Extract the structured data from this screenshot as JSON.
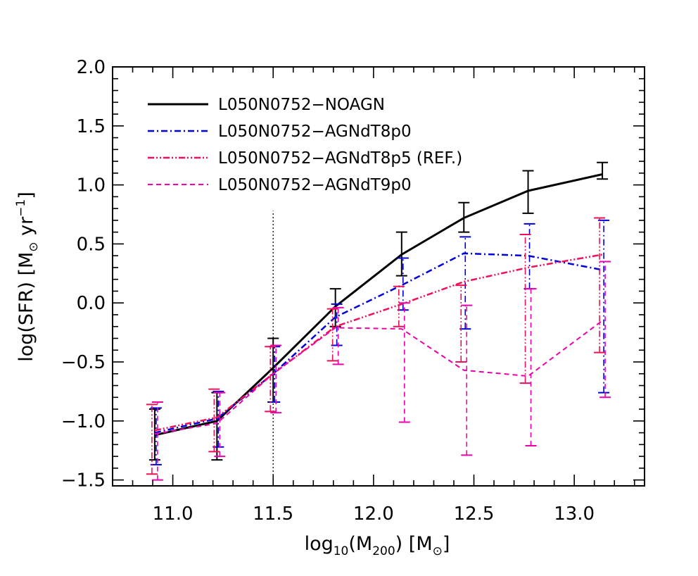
{
  "chart_data": {
    "type": "line",
    "title": "",
    "xlabel": {
      "pre": "log",
      "sub": "10",
      "mid": "(M",
      "sub2": "200",
      "post": ")  [M",
      "sym": "⊙",
      "end": "]"
    },
    "ylabel": {
      "pre": "log(SFR)  [M",
      "sym": "⊙",
      "mid": " yr",
      "sup": "−1",
      "end": "]"
    },
    "xlim": [
      10.7,
      13.35
    ],
    "ylim": [
      -1.55,
      2.0
    ],
    "xticks": [
      {
        "value": 11.0,
        "label": "11.0"
      },
      {
        "value": 11.5,
        "label": "11.5"
      },
      {
        "value": 12.0,
        "label": "12.0"
      },
      {
        "value": 12.5,
        "label": "12.5"
      },
      {
        "value": 13.0,
        "label": "13.0"
      }
    ],
    "yticks": [
      {
        "value": -1.5,
        "label": "−1.5"
      },
      {
        "value": -1.0,
        "label": "−1.0"
      },
      {
        "value": -0.5,
        "label": "−0.5"
      },
      {
        "value": 0.0,
        "label": "0.0"
      },
      {
        "value": 0.5,
        "label": "0.5"
      },
      {
        "value": 1.0,
        "label": "1.0"
      },
      {
        "value": 1.5,
        "label": "1.5"
      },
      {
        "value": 2.0,
        "label": "2.0"
      }
    ],
    "vline": {
      "x": 11.5,
      "y_top": 0.78
    },
    "legend_position": "top-left",
    "series": [
      {
        "name": "L050N0752−NOAGN",
        "color": "#000000",
        "style": "solid",
        "x": [
          10.91,
          11.22,
          11.5,
          11.81,
          12.14,
          12.45,
          12.77,
          13.14
        ],
        "y": [
          -1.12,
          -1.0,
          -0.55,
          -0.03,
          0.41,
          0.72,
          0.95,
          1.09
        ],
        "err_low": [
          -1.33,
          -1.33,
          -0.84,
          -0.2,
          0.23,
          0.6,
          0.76,
          1.05
        ],
        "err_high": [
          -0.9,
          -0.76,
          -0.3,
          0.12,
          0.6,
          0.85,
          1.12,
          1.19
        ]
      },
      {
        "name": "L050N0752−AGNdT8p0",
        "color": "#0000dd",
        "style": "dashdot",
        "x": [
          10.91,
          11.22,
          11.5,
          11.81,
          12.14,
          12.45,
          12.77,
          13.14
        ],
        "y": [
          -1.1,
          -0.98,
          -0.6,
          -0.12,
          0.15,
          0.42,
          0.4,
          0.28
        ],
        "err_low": [
          -1.37,
          -1.22,
          -0.84,
          -0.36,
          -0.06,
          -0.22,
          0.12,
          -0.76
        ],
        "err_high": [
          -0.89,
          -0.75,
          -0.37,
          -0.01,
          0.38,
          0.56,
          0.67,
          0.7
        ]
      },
      {
        "name": "L050N0752−AGNdT8p5 (REF.)",
        "color": "#ee1155",
        "style": "dashdotdot",
        "x": [
          10.91,
          11.22,
          11.5,
          11.81,
          12.14,
          12.45,
          12.77,
          13.14
        ],
        "y": [
          -1.08,
          -0.97,
          -0.6,
          -0.2,
          -0.01,
          0.18,
          0.3,
          0.41
        ],
        "err_low": [
          -1.45,
          -1.26,
          -0.92,
          -0.49,
          -0.2,
          -0.5,
          -0.68,
          -0.42
        ],
        "err_high": [
          -0.86,
          -0.73,
          -0.37,
          -0.05,
          0.14,
          0.15,
          0.58,
          0.72
        ]
      },
      {
        "name": "L050N0752−AGNdT9p0",
        "color": "#ee00aa",
        "style": "dashed",
        "x": [
          10.91,
          11.22,
          11.5,
          11.81,
          12.14,
          12.45,
          12.77,
          13.14
        ],
        "y": [
          -1.11,
          -1.02,
          -0.6,
          -0.21,
          -0.22,
          -0.57,
          -0.62,
          -0.15
        ],
        "err_low": [
          -1.5,
          -1.3,
          -0.93,
          -0.52,
          -1.01,
          -1.29,
          -1.21,
          -0.8
        ],
        "err_high": [
          -0.84,
          -0.76,
          -0.36,
          -0.04,
          0.0,
          -0.02,
          0.12,
          0.35
        ]
      }
    ]
  }
}
